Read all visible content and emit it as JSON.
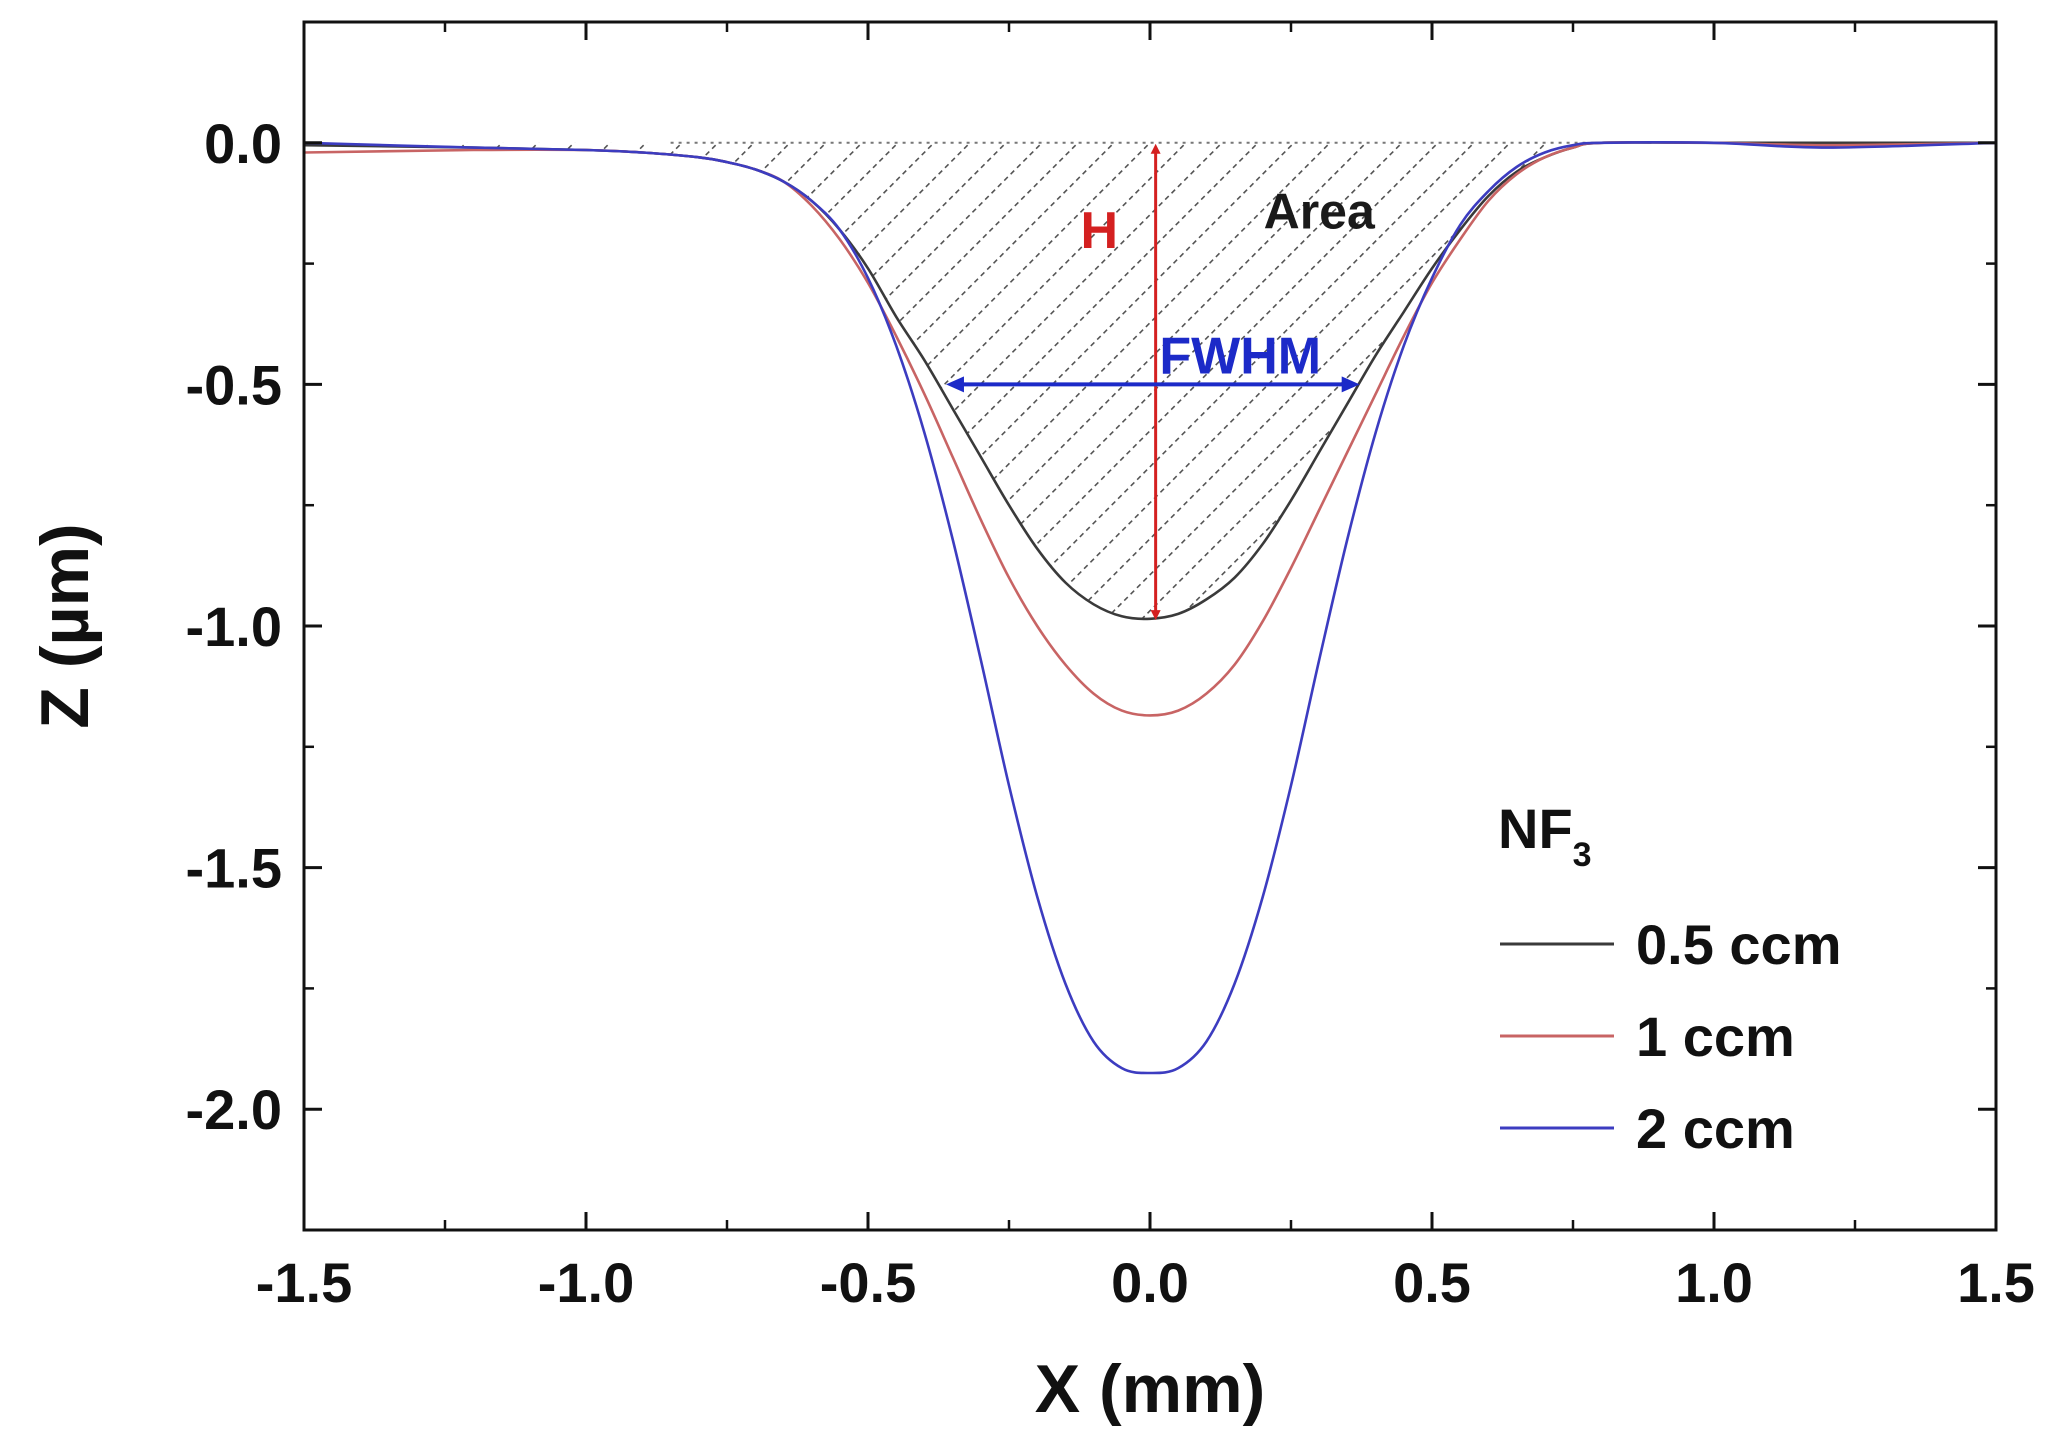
{
  "chart_data": {
    "type": "line",
    "xlabel": "X (mm)",
    "ylabel": "Z (µm)",
    "xlim": [
      -1.5,
      1.5
    ],
    "ylim": [
      -2.25,
      0.25
    ],
    "xticks": [
      -1.5,
      -1.0,
      -0.5,
      0.0,
      0.5,
      1.0,
      1.5
    ],
    "xtick_labels": [
      "-1.5",
      "-1.0",
      "-0.5",
      "0.0",
      "0.5",
      "1.0",
      "1.5"
    ],
    "yticks": [
      0.0,
      -0.5,
      -1.0,
      -1.5,
      -2.0
    ],
    "ytick_labels": [
      "0.0",
      "-0.5",
      "-1.0",
      "-1.5",
      "-2.0"
    ],
    "grid": false,
    "legend_title": "NF",
    "legend_title_subscript": "3",
    "legend_position": "bottom-right",
    "colors": {
      "series_1": "#3a3a3a",
      "series_2": "#c86464",
      "series_3": "#3c3cc0",
      "height_arrow": "#d42020",
      "fwhm_arrow": "#1c2ac8",
      "hatch": "#555555"
    },
    "series": [
      {
        "name": "0.5 ccm",
        "x": [
          -1.5,
          -1.2,
          -1.0,
          -0.9,
          -0.8,
          -0.75,
          -0.7,
          -0.65,
          -0.6,
          -0.55,
          -0.5,
          -0.45,
          -0.4,
          -0.35,
          -0.3,
          -0.25,
          -0.2,
          -0.15,
          -0.1,
          -0.05,
          0.0,
          0.05,
          0.1,
          0.15,
          0.2,
          0.25,
          0.3,
          0.35,
          0.4,
          0.45,
          0.5,
          0.55,
          0.6,
          0.65,
          0.7,
          0.75,
          0.8,
          1.0,
          1.2,
          1.5
        ],
        "values": [
          -0.005,
          -0.01,
          -0.015,
          -0.02,
          -0.03,
          -0.04,
          -0.055,
          -0.08,
          -0.12,
          -0.18,
          -0.26,
          -0.36,
          -0.45,
          -0.55,
          -0.65,
          -0.75,
          -0.84,
          -0.91,
          -0.955,
          -0.98,
          -0.985,
          -0.975,
          -0.945,
          -0.9,
          -0.83,
          -0.74,
          -0.64,
          -0.54,
          -0.44,
          -0.35,
          -0.26,
          -0.18,
          -0.11,
          -0.06,
          -0.03,
          -0.01,
          0.0,
          0.0,
          0.0,
          0.0
        ]
      },
      {
        "name": "1 ccm",
        "x": [
          -1.5,
          -1.2,
          -1.0,
          -0.9,
          -0.8,
          -0.75,
          -0.7,
          -0.65,
          -0.6,
          -0.55,
          -0.5,
          -0.45,
          -0.4,
          -0.35,
          -0.3,
          -0.25,
          -0.2,
          -0.15,
          -0.1,
          -0.05,
          0.0,
          0.05,
          0.1,
          0.15,
          0.2,
          0.25,
          0.3,
          0.35,
          0.4,
          0.45,
          0.5,
          0.55,
          0.6,
          0.65,
          0.7,
          0.75,
          0.8,
          1.0,
          1.2,
          1.5
        ],
        "values": [
          -0.02,
          -0.015,
          -0.015,
          -0.02,
          -0.03,
          -0.04,
          -0.055,
          -0.08,
          -0.13,
          -0.2,
          -0.29,
          -0.4,
          -0.52,
          -0.65,
          -0.78,
          -0.9,
          -1.0,
          -1.08,
          -1.14,
          -1.175,
          -1.185,
          -1.175,
          -1.14,
          -1.08,
          -0.99,
          -0.88,
          -0.76,
          -0.64,
          -0.52,
          -0.4,
          -0.29,
          -0.2,
          -0.12,
          -0.065,
          -0.03,
          -0.01,
          0.0,
          0.0,
          -0.005,
          0.0
        ]
      },
      {
        "name": "2 ccm",
        "x": [
          -1.5,
          -1.2,
          -1.0,
          -0.9,
          -0.8,
          -0.75,
          -0.7,
          -0.65,
          -0.6,
          -0.55,
          -0.5,
          -0.45,
          -0.4,
          -0.35,
          -0.3,
          -0.25,
          -0.2,
          -0.15,
          -0.1,
          -0.05,
          0.0,
          0.05,
          0.1,
          0.15,
          0.2,
          0.25,
          0.3,
          0.35,
          0.4,
          0.45,
          0.5,
          0.55,
          0.6,
          0.65,
          0.7,
          0.75,
          0.8,
          1.0,
          1.2,
          1.5
        ],
        "values": [
          0.0,
          -0.01,
          -0.015,
          -0.02,
          -0.03,
          -0.04,
          -0.055,
          -0.08,
          -0.12,
          -0.18,
          -0.28,
          -0.42,
          -0.6,
          -0.82,
          -1.07,
          -1.33,
          -1.56,
          -1.74,
          -1.86,
          -1.915,
          -1.925,
          -1.915,
          -1.86,
          -1.74,
          -1.56,
          -1.33,
          -1.07,
          -0.82,
          -0.6,
          -0.42,
          -0.28,
          -0.17,
          -0.1,
          -0.05,
          -0.02,
          -0.005,
          0.0,
          0.0,
          -0.01,
          0.0
        ]
      }
    ],
    "annotations": {
      "area_label": "Area",
      "height_label": "H",
      "fwhm_label": "FWHM",
      "height_arrow": {
        "x": 0.01,
        "y_top": 0.0,
        "y_bottom": -0.99
      },
      "fwhm_arrow": {
        "x_left": -0.36,
        "x_right": 0.37,
        "y": -0.5
      },
      "baseline_y": 0.0,
      "area_label_at": {
        "x": 0.3,
        "y": -0.14
      },
      "height_label_at": {
        "x": -0.09,
        "y": -0.18
      },
      "fwhm_label_at": {
        "x": 0.16,
        "y": -0.44
      }
    }
  }
}
